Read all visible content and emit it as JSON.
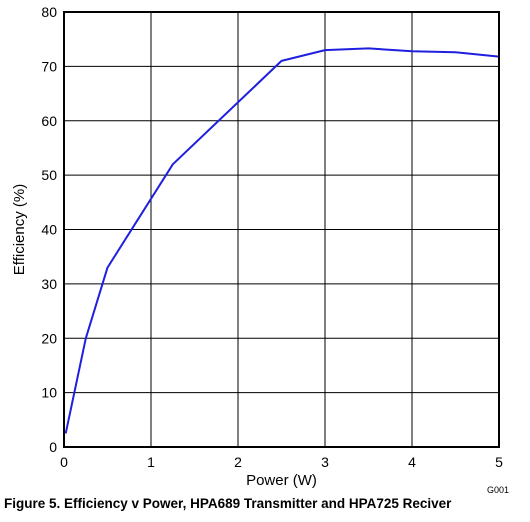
{
  "caption": "Figure 5. Efficiency v Power, HPA689 Transmitter and HPA725 Reciver",
  "figure_id": "G001",
  "chart_data": {
    "type": "line",
    "title": "",
    "xlabel": "Power (W)",
    "ylabel": "Efficiency (%)",
    "xlim": [
      0,
      5
    ],
    "ylim": [
      0,
      80
    ],
    "xticks": [
      "0",
      "1",
      "2",
      "3",
      "4",
      "5"
    ],
    "yticks": [
      "0",
      "10",
      "20",
      "30",
      "40",
      "50",
      "60",
      "70",
      "80"
    ],
    "grid": true,
    "line_color": "#1f1fe0",
    "series": [
      {
        "x": [
          0.02,
          0.25,
          0.5,
          1.25,
          2.5,
          3.0,
          3.5,
          4.0,
          4.5,
          5.0
        ],
        "y": [
          2.5,
          20,
          33,
          52,
          71,
          73,
          73.3,
          72.8,
          72.6,
          71.8
        ]
      }
    ]
  }
}
